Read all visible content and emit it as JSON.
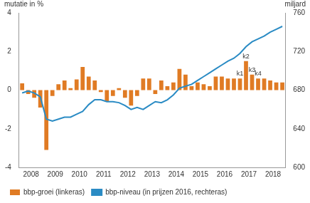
{
  "chart_data": {
    "type": "bar",
    "categories": [
      null,
      "2008",
      null,
      null,
      null,
      "2009",
      null,
      null,
      null,
      "2010",
      null,
      null,
      null,
      "2011",
      null,
      null,
      null,
      "2012",
      null,
      null,
      null,
      "2013",
      null,
      null,
      null,
      "2014",
      null,
      null,
      null,
      "2015",
      null,
      null,
      null,
      "2016",
      null,
      null,
      null,
      "2017",
      null,
      null,
      null,
      "2018",
      null,
      null
    ],
    "series": [
      {
        "name": "bbp-groei (linkeras)",
        "type": "bar",
        "color": "#e07b24",
        "values": [
          0.35,
          -0.2,
          -0.4,
          -0.9,
          -3.1,
          -0.3,
          0.3,
          0.5,
          0.1,
          0.55,
          1.2,
          0.7,
          0.5,
          -0.1,
          -0.6,
          -0.3,
          0.1,
          -0.4,
          -0.8,
          -0.3,
          0.6,
          0.6,
          -0.2,
          0.5,
          0.2,
          0.4,
          1.1,
          0.8,
          0.2,
          0.4,
          0.3,
          0.2,
          0.7,
          0.7,
          0.6,
          0.6,
          0.6,
          1.5,
          0.8,
          0.6,
          0.6,
          0.5,
          0.4,
          0.4
        ]
      },
      {
        "name": "bbp-niveau (in prijzen 2016, rechteras)",
        "type": "line",
        "color": "#2a8bc4",
        "axis": "y2",
        "values": [
          677,
          679,
          677,
          673,
          650,
          648,
          650,
          652,
          652,
          655,
          658,
          665,
          670,
          670,
          668,
          668,
          667,
          664,
          660,
          662,
          660,
          664,
          668,
          667,
          670,
          675,
          682,
          684,
          686,
          690,
          694,
          698,
          702,
          706,
          710,
          713,
          718,
          725,
          730,
          733,
          736,
          740,
          743,
          746
        ]
      }
    ],
    "ylim": [
      -4,
      4
    ],
    "yticks": [
      -4,
      -2,
      0,
      2,
      4
    ],
    "y2lim": [
      600,
      760
    ],
    "y2ticks": [
      600,
      640,
      680,
      720,
      760
    ],
    "y_label": "mutatie in %",
    "y2_label": "miljard",
    "annotations": [
      {
        "text": "k1",
        "index": 36
      },
      {
        "text": "k2",
        "index": 37
      },
      {
        "text": "k3",
        "index": 38
      },
      {
        "text": "k4",
        "index": 39
      }
    ],
    "legend": "bottom",
    "grid": false
  }
}
